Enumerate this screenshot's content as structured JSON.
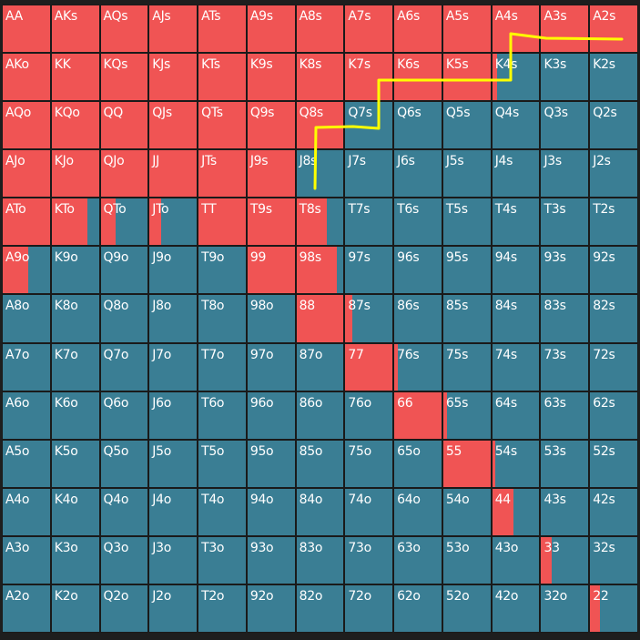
{
  "colors": {
    "raise": "#f05454",
    "fold": "#3a7e94",
    "border": "#1a1a1a",
    "annotation": "#ffff00"
  },
  "grid": [
    [
      [
        "AA",
        1
      ],
      [
        "AKs",
        1
      ],
      [
        "AQs",
        1
      ],
      [
        "AJs",
        1
      ],
      [
        "ATs",
        1
      ],
      [
        "A9s",
        1
      ],
      [
        "A8s",
        1
      ],
      [
        "A7s",
        1
      ],
      [
        "A6s",
        1
      ],
      [
        "A5s",
        1
      ],
      [
        "A4s",
        1
      ],
      [
        "A3s",
        1
      ],
      [
        "A2s",
        1
      ]
    ],
    [
      [
        "AKo",
        1
      ],
      [
        "KK",
        1
      ],
      [
        "KQs",
        1
      ],
      [
        "KJs",
        1
      ],
      [
        "KTs",
        1
      ],
      [
        "K9s",
        1
      ],
      [
        "K8s",
        1
      ],
      [
        "K7s",
        1
      ],
      [
        "K6s",
        1
      ],
      [
        "K5s",
        1
      ],
      [
        "K4s",
        0.1
      ],
      [
        "K3s",
        0
      ],
      [
        "K2s",
        0
      ]
    ],
    [
      [
        "AQo",
        1
      ],
      [
        "KQo",
        1
      ],
      [
        "QQ",
        1
      ],
      [
        "QJs",
        1
      ],
      [
        "QTs",
        1
      ],
      [
        "Q9s",
        1
      ],
      [
        "Q8s",
        1
      ],
      [
        "Q7s",
        0
      ],
      [
        "Q6s",
        0
      ],
      [
        "Q5s",
        0
      ],
      [
        "Q4s",
        0
      ],
      [
        "Q3s",
        0
      ],
      [
        "Q2s",
        0
      ]
    ],
    [
      [
        "AJo",
        1
      ],
      [
        "KJo",
        1
      ],
      [
        "QJo",
        1
      ],
      [
        "JJ",
        1
      ],
      [
        "JTs",
        1
      ],
      [
        "J9s",
        1
      ],
      [
        "J8s",
        0
      ],
      [
        "J7s",
        0
      ],
      [
        "J6s",
        0
      ],
      [
        "J5s",
        0
      ],
      [
        "J4s",
        0
      ],
      [
        "J3s",
        0
      ],
      [
        "J2s",
        0
      ]
    ],
    [
      [
        "ATo",
        1
      ],
      [
        "KTo",
        0.75
      ],
      [
        "QTo",
        0.32
      ],
      [
        "JTo",
        0.25
      ],
      [
        "TT",
        1
      ],
      [
        "T9s",
        1
      ],
      [
        "T8s",
        0.65
      ],
      [
        "T7s",
        0
      ],
      [
        "T6s",
        0
      ],
      [
        "T5s",
        0
      ],
      [
        "T4s",
        0
      ],
      [
        "T3s",
        0
      ],
      [
        "T2s",
        0
      ]
    ],
    [
      [
        "A9o",
        0.55
      ],
      [
        "K9o",
        0
      ],
      [
        "Q9o",
        0
      ],
      [
        "J9o",
        0
      ],
      [
        "T9o",
        0
      ],
      [
        "99",
        1
      ],
      [
        "98s",
        0.85
      ],
      [
        "97s",
        0
      ],
      [
        "96s",
        0
      ],
      [
        "95s",
        0
      ],
      [
        "94s",
        0
      ],
      [
        "93s",
        0
      ],
      [
        "92s",
        0
      ]
    ],
    [
      [
        "A8o",
        0
      ],
      [
        "K8o",
        0
      ],
      [
        "Q8o",
        0
      ],
      [
        "J8o",
        0
      ],
      [
        "T8o",
        0
      ],
      [
        "98o",
        0
      ],
      [
        "88",
        1
      ],
      [
        "87s",
        0.15
      ],
      [
        "86s",
        0
      ],
      [
        "85s",
        0
      ],
      [
        "84s",
        0
      ],
      [
        "83s",
        0
      ],
      [
        "82s",
        0
      ]
    ],
    [
      [
        "A7o",
        0
      ],
      [
        "K7o",
        0
      ],
      [
        "Q7o",
        0
      ],
      [
        "J7o",
        0
      ],
      [
        "T7o",
        0
      ],
      [
        "97o",
        0
      ],
      [
        "87o",
        0
      ],
      [
        "77",
        1
      ],
      [
        "76s",
        0.08
      ],
      [
        "75s",
        0
      ],
      [
        "74s",
        0
      ],
      [
        "73s",
        0
      ],
      [
        "72s",
        0
      ]
    ],
    [
      [
        "A6o",
        0
      ],
      [
        "K6o",
        0
      ],
      [
        "Q6o",
        0
      ],
      [
        "J6o",
        0
      ],
      [
        "T6o",
        0
      ],
      [
        "96o",
        0
      ],
      [
        "86o",
        0
      ],
      [
        "76o",
        0
      ],
      [
        "66",
        1
      ],
      [
        "65s",
        0.08
      ],
      [
        "64s",
        0
      ],
      [
        "63s",
        0
      ],
      [
        "62s",
        0
      ]
    ],
    [
      [
        "A5o",
        0
      ],
      [
        "K5o",
        0
      ],
      [
        "Q5o",
        0
      ],
      [
        "J5o",
        0
      ],
      [
        "T5o",
        0
      ],
      [
        "95o",
        0
      ],
      [
        "85o",
        0
      ],
      [
        "75o",
        0
      ],
      [
        "65o",
        0
      ],
      [
        "55",
        1
      ],
      [
        "54s",
        0.06
      ],
      [
        "53s",
        0
      ],
      [
        "52s",
        0
      ]
    ],
    [
      [
        "A4o",
        0
      ],
      [
        "K4o",
        0
      ],
      [
        "Q4o",
        0
      ],
      [
        "J4o",
        0
      ],
      [
        "T4o",
        0
      ],
      [
        "94o",
        0
      ],
      [
        "84o",
        0
      ],
      [
        "74o",
        0
      ],
      [
        "64o",
        0
      ],
      [
        "54o",
        0
      ],
      [
        "44",
        0.45
      ],
      [
        "43s",
        0
      ],
      [
        "42s",
        0
      ]
    ],
    [
      [
        "A3o",
        0
      ],
      [
        "K3o",
        0
      ],
      [
        "Q3o",
        0
      ],
      [
        "J3o",
        0
      ],
      [
        "T3o",
        0
      ],
      [
        "93o",
        0
      ],
      [
        "83o",
        0
      ],
      [
        "73o",
        0
      ],
      [
        "63o",
        0
      ],
      [
        "53o",
        0
      ],
      [
        "43o",
        0
      ],
      [
        "33",
        0.22
      ],
      [
        "32s",
        0
      ]
    ],
    [
      [
        "A2o",
        0
      ],
      [
        "K2o",
        0
      ],
      [
        "Q2o",
        0
      ],
      [
        "J2o",
        0
      ],
      [
        "T2o",
        0
      ],
      [
        "92o",
        0
      ],
      [
        "82o",
        0
      ],
      [
        "72o",
        0
      ],
      [
        "62o",
        0
      ],
      [
        "52o",
        0
      ],
      [
        "42o",
        0
      ],
      [
        "32o",
        0
      ],
      [
        "22",
        0.2
      ]
    ]
  ]
}
